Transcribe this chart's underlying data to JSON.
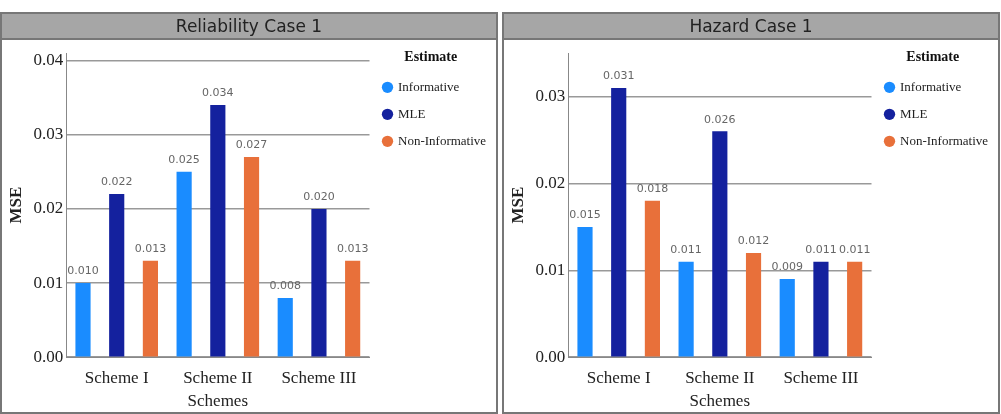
{
  "chart_data": [
    {
      "type": "bar",
      "title": "Reliability Case 1",
      "xlabel": "Schemes",
      "ylabel": "MSE",
      "legend_title": "Estimate",
      "categories": [
        "Scheme I",
        "Scheme II",
        "Scheme III"
      ],
      "series": [
        {
          "name": "Informative",
          "color": "#1a8cff",
          "values": [
            0.01,
            0.025,
            0.008
          ],
          "value_labels": [
            "0.010",
            "0.025",
            "0.008"
          ]
        },
        {
          "name": "MLE",
          "color": "#14219e",
          "values": [
            0.022,
            0.034,
            0.02
          ],
          "value_labels": [
            "0.022",
            "0.034",
            "0.020"
          ]
        },
        {
          "name": "Non-Informative",
          "color": "#e8703a",
          "values": [
            0.013,
            0.027,
            0.013
          ],
          "value_labels": [
            "0.013",
            "0.027",
            "0.013"
          ]
        }
      ],
      "ylim": [
        0,
        0.041
      ],
      "yticks": [
        {
          "value": 0,
          "label": "0.00"
        },
        0.01,
        0.02,
        0.03,
        0.04
      ],
      "grid": "y",
      "legend": "right"
    },
    {
      "type": "bar",
      "title": "Hazard Case 1",
      "xlabel": "Schemes",
      "ylabel": "MSE",
      "legend_title": "Estimate",
      "categories": [
        "Scheme I",
        "Scheme II",
        "Scheme III"
      ],
      "series": [
        {
          "name": "Informative",
          "color": "#1a8cff",
          "values": [
            0.015,
            0.011,
            0.009
          ],
          "value_labels": [
            "0.015",
            "0.011",
            "0.009"
          ]
        },
        {
          "name": "MLE",
          "color": "#14219e",
          "values": [
            0.031,
            0.026,
            0.011
          ],
          "value_labels": [
            "0.031",
            "0.026",
            "0.011"
          ]
        },
        {
          "name": "Non-Informative",
          "color": "#e8703a",
          "values": [
            0.018,
            0.012,
            0.011
          ],
          "value_labels": [
            "0.018",
            "0.012",
            "0.011"
          ]
        }
      ],
      "ylim": [
        0,
        0.035
      ],
      "yticks": [
        {
          "value": 0,
          "label": "0.00"
        },
        0.01,
        0.02,
        0.03
      ],
      "grid": "y",
      "legend": "right"
    }
  ]
}
